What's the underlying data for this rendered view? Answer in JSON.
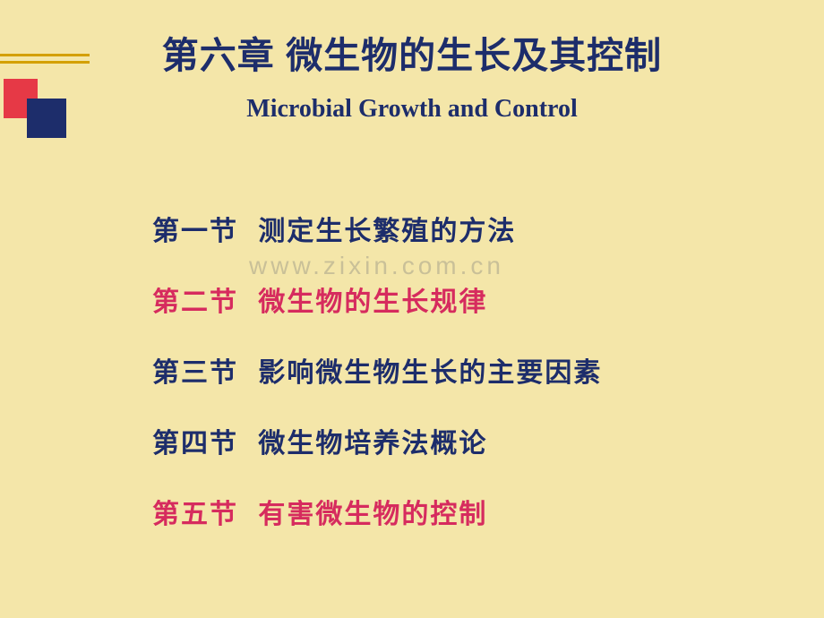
{
  "header": {
    "chapter_title": "第六章  微生物的生长及其控制",
    "subtitle": "Microbial Growth and Control"
  },
  "decoration": {
    "line_color": "#d4a000",
    "red_square_color": "#e63946",
    "blue_square_color": "#1d2d6b"
  },
  "sections": [
    {
      "label": "第一节",
      "text": "测定生长繁殖的方法",
      "color": "blue"
    },
    {
      "label": "第二节",
      "text": "微生物的生长规律",
      "color": "red"
    },
    {
      "label": "第三节",
      "text": "影响微生物生长的主要因素",
      "color": "blue"
    },
    {
      "label": "第四节",
      "text": "微生物培养法概论",
      "color": "blue"
    },
    {
      "label": "第五节",
      "text": "有害微生物的控制",
      "color": "red"
    }
  ],
  "watermark": "www.zixin.com.cn",
  "colors": {
    "background": "#f4e6a9",
    "text_blue": "#1d2d6b",
    "text_red": "#d62b5e"
  }
}
